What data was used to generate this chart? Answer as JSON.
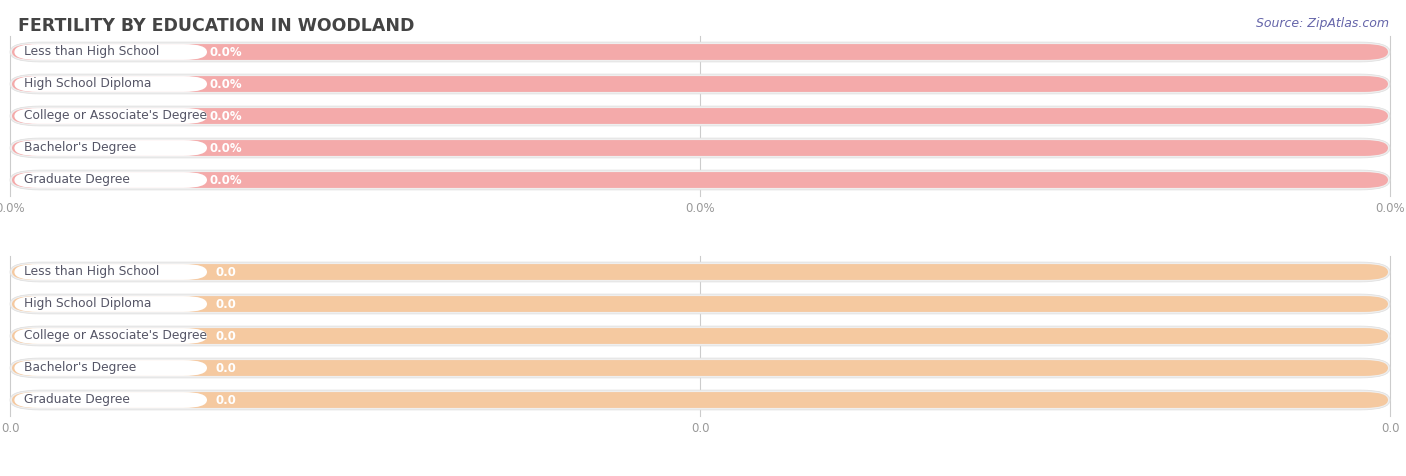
{
  "title": "FERTILITY BY EDUCATION IN WOODLAND",
  "source": "Source: ZipAtlas.com",
  "categories": [
    "Less than High School",
    "High School Diploma",
    "College or Associate's Degree",
    "Bachelor's Degree",
    "Graduate Degree"
  ],
  "values_top": [
    0.0,
    0.0,
    0.0,
    0.0,
    0.0
  ],
  "values_bottom": [
    0.0,
    0.0,
    0.0,
    0.0,
    0.0
  ],
  "bar_color_top": "#F5C9A0",
  "bar_color_bottom": "#F4AAAA",
  "background_bar_color": "#EFEFEF",
  "white_label_bg": "#FFFFFF",
  "title_color": "#444444",
  "tick_color": "#999999",
  "source_color": "#6666AA",
  "label_text_color": "#555566",
  "value_text_color_top": "#D4956A",
  "value_text_color_bottom": "#D47070",
  "x_tick_labels_top": [
    "0.0",
    "0.0",
    "0.0"
  ],
  "x_tick_labels_bottom": [
    "0.0%",
    "0.0%",
    "0.0%"
  ]
}
